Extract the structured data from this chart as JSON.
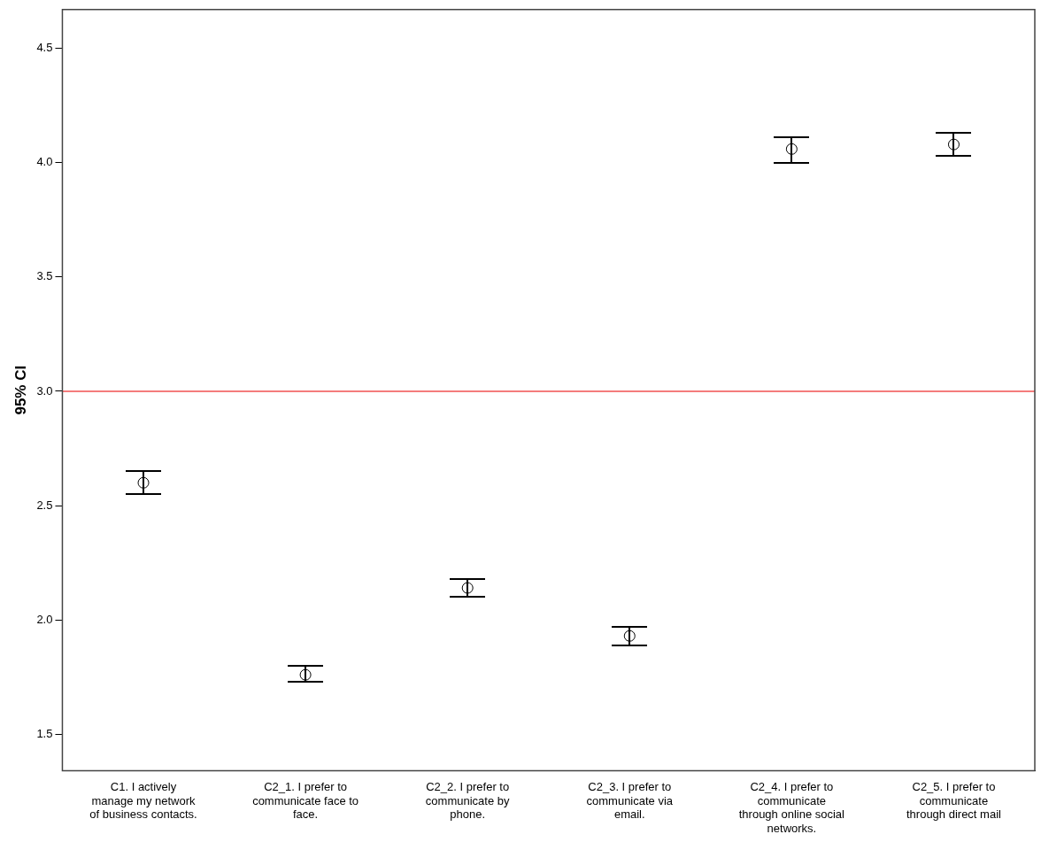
{
  "chart_data": {
    "type": "scatter",
    "ylabel": "95% CI",
    "categories": [
      "C1. I actively manage my network of business contacts.",
      "C2_1. I prefer to communicate face to face.",
      "C2_2. I prefer to communicate by phone.",
      "C2_3. I prefer to communicate via email.",
      "C2_4. I prefer to communicate through online social networks.",
      "C2_5. I prefer to communicate through direct mail"
    ],
    "series": [
      {
        "color": "#000000",
        "values": [
          2.6,
          1.76,
          2.14,
          1.93,
          4.06,
          4.08
        ],
        "errors": [
          [
            2.55,
            2.65
          ],
          [
            1.73,
            1.8
          ],
          [
            2.1,
            2.18
          ],
          [
            1.89,
            1.97
          ],
          [
            4.0,
            4.11
          ],
          [
            4.03,
            4.13
          ]
        ]
      }
    ],
    "ylim": [
      1.34,
      4.67
    ],
    "yticks": [
      {
        "value": 1.5,
        "label": "1.5"
      },
      {
        "value": 2.0,
        "label": "2.0"
      },
      {
        "value": 2.5,
        "label": "2.5"
      },
      {
        "value": 3.0,
        "label": "3.0"
      },
      {
        "value": 3.5,
        "label": "3.5"
      },
      {
        "value": 4.0,
        "label": "4.0"
      },
      {
        "value": 4.5,
        "label": "4.5"
      }
    ],
    "ref_lines": [
      {
        "axis": "y",
        "value": 3.0,
        "color": "#f05050"
      }
    ],
    "grid": false,
    "legend": false,
    "marker": "circle"
  }
}
